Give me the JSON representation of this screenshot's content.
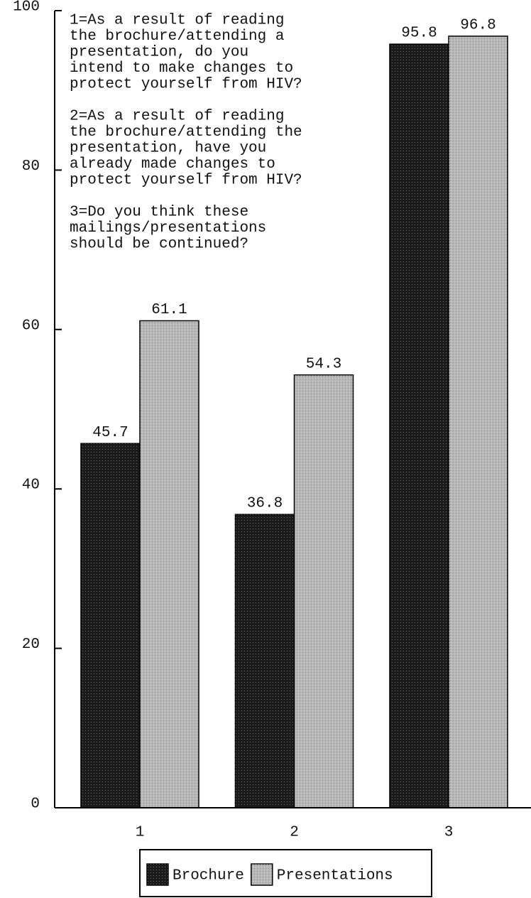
{
  "chart_data": {
    "type": "bar",
    "categories": [
      "1",
      "2",
      "3"
    ],
    "series": [
      {
        "name": "Brochure",
        "color": "#1c1c1c",
        "values": [
          45.7,
          36.8,
          95.8
        ]
      },
      {
        "name": "Presentations",
        "color": "#b8b8b8",
        "values": [
          61.1,
          54.3,
          96.8
        ]
      }
    ],
    "ylim": [
      0,
      100
    ],
    "yticks": [
      0,
      20,
      40,
      60,
      80,
      100
    ],
    "annotations": [
      [
        "1=As a result of reading",
        "the brochure/attending a",
        "presentation, do you",
        "intend to make changes to",
        "protect yourself from HIV?"
      ],
      [
        "2=As a result of reading",
        "the brochure/attending the",
        "presentation, have you",
        "already made changes to",
        "protect yourself from HIV?"
      ],
      [
        "3=Do you think these",
        "mailings/presentations",
        "should be continued?"
      ]
    ],
    "legend": "bottom"
  }
}
